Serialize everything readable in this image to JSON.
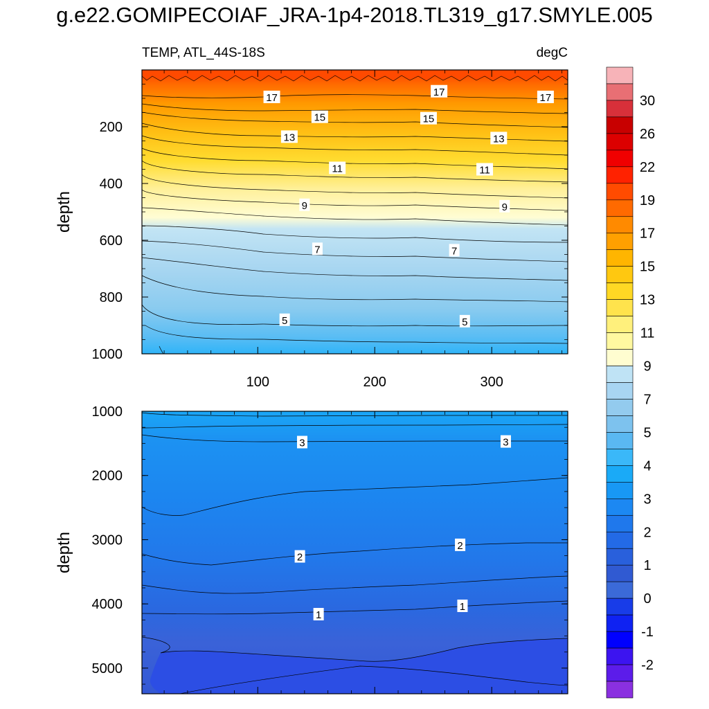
{
  "title": "g.e22.GOMIPECOIAF_JRA-1p4-2018.TL319_g17.SMYLE.005",
  "chart_data": [
    {
      "type": "contour",
      "panel": "upper",
      "title_left": "TEMP, ATL_44S-18S",
      "title_right": "degC",
      "ylabel": "depth",
      "xlabel": "",
      "xlim": [
        1,
        365
      ],
      "ylim": [
        0,
        1000
      ],
      "y_reversed": true,
      "xticks": [
        100,
        200,
        300
      ],
      "yticks": [
        200,
        400,
        600,
        800,
        1000
      ],
      "contour_labels": [
        {
          "value": "17",
          "x": 112,
          "depth": 95
        },
        {
          "value": "17",
          "x": 255,
          "depth": 75
        },
        {
          "value": "17",
          "x": 346,
          "depth": 95
        },
        {
          "value": "15",
          "x": 153,
          "depth": 165
        },
        {
          "value": "15",
          "x": 246,
          "depth": 170
        },
        {
          "value": "13",
          "x": 127,
          "depth": 235
        },
        {
          "value": "13",
          "x": 306,
          "depth": 240
        },
        {
          "value": "11",
          "x": 168,
          "depth": 345
        },
        {
          "value": "11",
          "x": 294,
          "depth": 350
        },
        {
          "value": "9",
          "x": 140,
          "depth": 475
        },
        {
          "value": "9",
          "x": 311,
          "depth": 480
        },
        {
          "value": "7",
          "x": 151,
          "depth": 630
        },
        {
          "value": "7",
          "x": 268,
          "depth": 635
        },
        {
          "value": "5",
          "x": 123,
          "depth": 880
        },
        {
          "value": "5",
          "x": 277,
          "depth": 885
        }
      ],
      "isotherm_depths": [
        {
          "level": 17,
          "x": [
            1,
            100,
            200,
            300,
            365
          ],
          "depth": [
            95,
            100,
            92,
            95,
            100
          ]
        },
        {
          "level": 15,
          "x": [
            1,
            100,
            200,
            300,
            365
          ],
          "depth": [
            150,
            160,
            170,
            165,
            170
          ]
        },
        {
          "level": 13,
          "x": [
            1,
            100,
            200,
            300,
            365
          ],
          "depth": [
            215,
            235,
            245,
            240,
            245
          ]
        },
        {
          "level": 11,
          "x": [
            1,
            100,
            200,
            300,
            365
          ],
          "depth": [
            290,
            330,
            345,
            350,
            350
          ]
        },
        {
          "level": 9,
          "x": [
            1,
            100,
            200,
            300,
            365
          ],
          "depth": [
            460,
            470,
            490,
            485,
            495
          ]
        },
        {
          "level": 7,
          "x": [
            1,
            100,
            200,
            300,
            365
          ],
          "depth": [
            560,
            610,
            640,
            635,
            645
          ]
        },
        {
          "level": 5,
          "x": [
            1,
            100,
            200,
            300,
            365
          ],
          "depth": [
            720,
            860,
            880,
            880,
            880
          ]
        }
      ]
    },
    {
      "type": "contour",
      "panel": "lower",
      "ylabel": "depth",
      "xlabel": "",
      "xlim": [
        1,
        365
      ],
      "ylim": [
        1000,
        5400
      ],
      "y_reversed": true,
      "yticks": [
        1000,
        2000,
        3000,
        4000,
        5000
      ],
      "contour_labels": [
        {
          "value": "3",
          "x": 138,
          "depth": 1480
        },
        {
          "value": "3",
          "x": 312,
          "depth": 1470
        },
        {
          "value": "2",
          "x": 136,
          "depth": 3260
        },
        {
          "value": "2",
          "x": 273,
          "depth": 3080
        },
        {
          "value": "1",
          "x": 152,
          "depth": 4160
        },
        {
          "value": "1",
          "x": 275,
          "depth": 4030
        }
      ],
      "isotherm_depths": [
        {
          "level": 3,
          "x": [
            1,
            100,
            200,
            300,
            365
          ],
          "depth": [
            1400,
            1490,
            1480,
            1470,
            1470
          ]
        },
        {
          "level": 2,
          "x": [
            1,
            100,
            200,
            300,
            365
          ],
          "depth": [
            3200,
            3280,
            3150,
            3050,
            3020
          ]
        },
        {
          "level": 1,
          "x": [
            1,
            100,
            200,
            300,
            365
          ],
          "depth": [
            4100,
            4160,
            4100,
            4000,
            3950
          ]
        }
      ]
    }
  ],
  "colorbar": {
    "labels": [
      "30",
      "26",
      "22",
      "19",
      "17",
      "15",
      "13",
      "11",
      "9",
      "7",
      "5",
      "4",
      "3",
      "2",
      "1",
      "0",
      "-1",
      "-2"
    ],
    "colors": [
      "#f7b3b8",
      "#e86f74",
      "#d8303a",
      "#c80000",
      "#dc0000",
      "#f00000",
      "#ff2200",
      "#ff4b00",
      "#ff6a00",
      "#ff8a00",
      "#ffa000",
      "#ffb500",
      "#ffc810",
      "#ffd824",
      "#ffe34c",
      "#fff07c",
      "#fff8a0",
      "#fffdd0",
      "#bfe3f5",
      "#a8d5f2",
      "#93cbee",
      "#7dc2ee",
      "#5ab8f2",
      "#3ab8f9",
      "#1aaaf7",
      "#1898f5",
      "#1c88f2",
      "#1f78ec",
      "#236ae6",
      "#2960dc",
      "#305ad2",
      "#3b6ad8",
      "#183ce8",
      "#0f22f2",
      "#0000ff",
      "#3c14f0",
      "#5c1cea",
      "#8a30e0"
    ]
  }
}
